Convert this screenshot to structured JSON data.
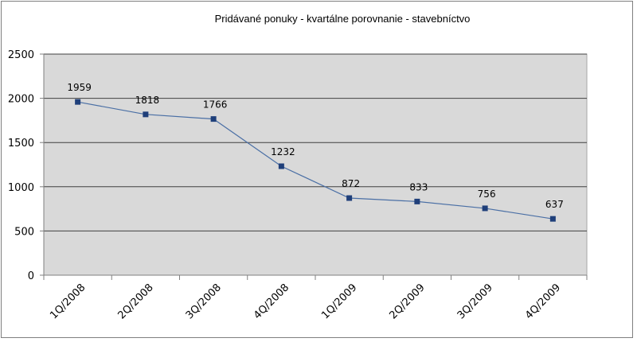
{
  "chart_data": {
    "type": "line",
    "title": "Pridávané ponuky - kvartálne porovnanie - stavebníctvo",
    "xlabel": "",
    "ylabel": "",
    "categories": [
      "1Q/2008",
      "2Q/2008",
      "3Q/2008",
      "4Q/2008",
      "1Q/2009",
      "2Q/2009",
      "3Q/2009",
      "4Q/2009"
    ],
    "series": [
      {
        "values": [
          1959,
          1818,
          1766,
          1232,
          872,
          833,
          756,
          637
        ],
        "color": "#1f3f7a",
        "line_color": "#4a6fa5"
      }
    ],
    "ylim": [
      0,
      2500
    ],
    "yticks": [
      0,
      500,
      1000,
      1500,
      2000,
      2500
    ],
    "grid": true,
    "legend": "none",
    "plot_background": "#d9d9d9",
    "data_labels": true
  }
}
